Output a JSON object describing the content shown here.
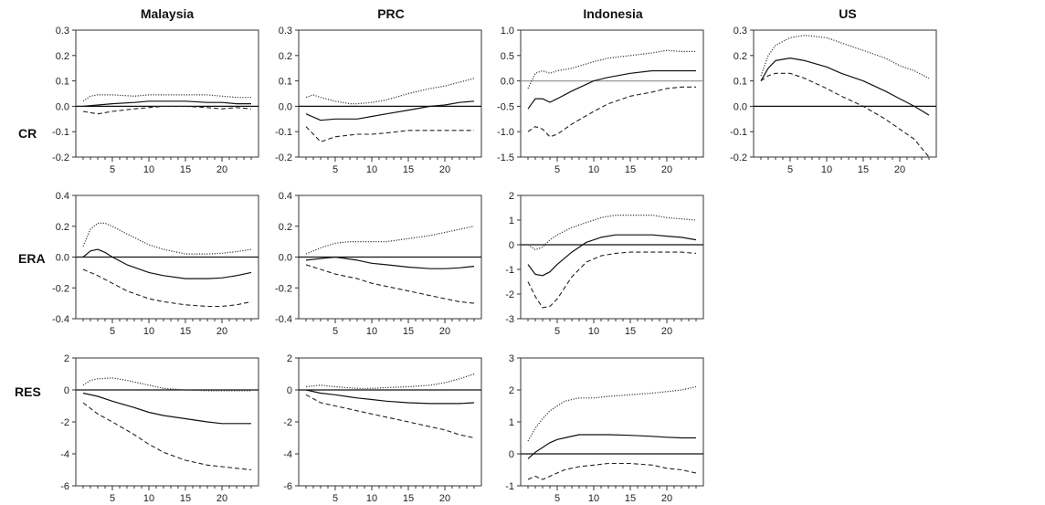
{
  "columns": [
    "Malaysia",
    "PRC",
    "Indonesia",
    "US"
  ],
  "rows": [
    "CR",
    "ERA",
    "RES"
  ],
  "chart_data": [
    {
      "type": "line",
      "country": "Malaysia",
      "variable": "CR",
      "ylim": [
        -0.2,
        0.3
      ],
      "yticks": [
        "0.3",
        "0.2",
        "0.1",
        "0.0",
        "-0.1",
        "-0.2"
      ],
      "xticks": [
        "5",
        "10",
        "15",
        "20"
      ],
      "xlim": [
        0,
        25
      ],
      "series": [
        {
          "style": "solid",
          "x": [
            1,
            3,
            5,
            8,
            10,
            12,
            15,
            18,
            20,
            22,
            24
          ],
          "values": [
            0.0,
            0.005,
            0.01,
            0.015,
            0.02,
            0.02,
            0.02,
            0.015,
            0.015,
            0.01,
            0.01
          ]
        },
        {
          "style": "dotted",
          "x": [
            1,
            2,
            3,
            5,
            8,
            10,
            12,
            15,
            18,
            20,
            22,
            24
          ],
          "values": [
            0.02,
            0.04,
            0.045,
            0.045,
            0.04,
            0.045,
            0.045,
            0.045,
            0.045,
            0.04,
            0.035,
            0.035
          ]
        },
        {
          "style": "dashed",
          "x": [
            1,
            3,
            5,
            8,
            10,
            12,
            15,
            18,
            20,
            22,
            24
          ],
          "values": [
            -0.02,
            -0.03,
            -0.02,
            -0.01,
            -0.005,
            0.0,
            0.0,
            -0.005,
            -0.01,
            -0.005,
            -0.01
          ]
        }
      ]
    },
    {
      "type": "line",
      "country": "PRC",
      "variable": "CR",
      "ylim": [
        -0.2,
        0.3
      ],
      "yticks": [
        "0.3",
        "0.2",
        "0.1",
        "0.0",
        "-0.1",
        "-0.2"
      ],
      "xticks": [
        "5",
        "10",
        "15",
        "20"
      ],
      "xlim": [
        0,
        25
      ],
      "series": [
        {
          "style": "solid",
          "x": [
            1,
            3,
            5,
            8,
            10,
            12,
            15,
            18,
            20,
            22,
            24
          ],
          "values": [
            -0.03,
            -0.055,
            -0.05,
            -0.05,
            -0.04,
            -0.03,
            -0.015,
            0.0,
            0.005,
            0.015,
            0.02
          ]
        },
        {
          "style": "dotted",
          "x": [
            1,
            2,
            3,
            5,
            7,
            8,
            10,
            12,
            15,
            18,
            20,
            22,
            24
          ],
          "values": [
            0.035,
            0.045,
            0.035,
            0.02,
            0.01,
            0.01,
            0.015,
            0.025,
            0.05,
            0.07,
            0.08,
            0.095,
            0.11
          ]
        },
        {
          "style": "dashed",
          "x": [
            1,
            3,
            5,
            8,
            10,
            12,
            15,
            18,
            20,
            22,
            24
          ],
          "values": [
            -0.08,
            -0.14,
            -0.12,
            -0.11,
            -0.11,
            -0.105,
            -0.095,
            -0.095,
            -0.095,
            -0.095,
            -0.095
          ]
        }
      ]
    },
    {
      "type": "line",
      "country": "Indonesia",
      "variable": "CR",
      "ylim": [
        -1.5,
        1.0
      ],
      "yticks": [
        "1.0",
        "0.5",
        "0.0",
        "-0.5",
        "-1.0",
        "-1.5"
      ],
      "xticks": [
        "5",
        "10",
        "15",
        "20"
      ],
      "xlim": [
        0,
        25
      ],
      "series": [
        {
          "style": "solid",
          "x": [
            1,
            2,
            3,
            4,
            5,
            7,
            10,
            12,
            15,
            18,
            20,
            22,
            24
          ],
          "values": [
            -0.55,
            -0.35,
            -0.35,
            -0.42,
            -0.35,
            -0.2,
            0.0,
            0.07,
            0.15,
            0.2,
            0.2,
            0.2,
            0.2
          ]
        },
        {
          "style": "dotted",
          "x": [
            1,
            2,
            3,
            4,
            5,
            7,
            10,
            12,
            15,
            18,
            20,
            22,
            24
          ],
          "values": [
            -0.15,
            0.15,
            0.2,
            0.15,
            0.2,
            0.25,
            0.38,
            0.45,
            0.5,
            0.55,
            0.6,
            0.58,
            0.58
          ]
        },
        {
          "style": "dashed",
          "x": [
            1,
            2,
            3,
            4,
            5,
            7,
            10,
            12,
            15,
            18,
            20,
            22,
            24
          ],
          "values": [
            -1.0,
            -0.9,
            -0.95,
            -1.1,
            -1.05,
            -0.85,
            -0.6,
            -0.45,
            -0.3,
            -0.22,
            -0.15,
            -0.12,
            -0.12
          ]
        }
      ]
    },
    {
      "type": "line",
      "country": "US",
      "variable": "CR",
      "ylim": [
        -0.2,
        0.3
      ],
      "yticks": [
        "0.3",
        "0.2",
        "0.1",
        "0.0",
        "-0.1",
        "-0.2"
      ],
      "xticks": [
        "5",
        "10",
        "15",
        "20"
      ],
      "xlim": [
        0,
        25
      ],
      "series": [
        {
          "style": "solid",
          "x": [
            1,
            2,
            3,
            5,
            7,
            10,
            12,
            15,
            18,
            20,
            22,
            24
          ],
          "values": [
            0.1,
            0.15,
            0.18,
            0.19,
            0.18,
            0.155,
            0.13,
            0.1,
            0.06,
            0.03,
            0.0,
            -0.035
          ]
        },
        {
          "style": "dotted",
          "x": [
            1,
            2,
            3,
            5,
            7,
            10,
            12,
            15,
            18,
            20,
            22,
            24
          ],
          "values": [
            0.12,
            0.2,
            0.24,
            0.27,
            0.28,
            0.27,
            0.25,
            0.22,
            0.19,
            0.16,
            0.14,
            0.11
          ]
        },
        {
          "style": "dashed",
          "x": [
            1,
            2,
            3,
            5,
            7,
            10,
            12,
            15,
            18,
            20,
            22,
            24
          ],
          "values": [
            0.1,
            0.12,
            0.13,
            0.13,
            0.11,
            0.07,
            0.04,
            0.0,
            -0.05,
            -0.09,
            -0.13,
            -0.2
          ]
        }
      ]
    },
    {
      "type": "line",
      "country": "Malaysia",
      "variable": "ERA",
      "ylim": [
        -0.4,
        0.4
      ],
      "yticks": [
        "0.4",
        "0.2",
        "0.0",
        "-0.2",
        "-0.4"
      ],
      "xticks": [
        "5",
        "10",
        "15",
        "20"
      ],
      "xlim": [
        0,
        25
      ],
      "series": [
        {
          "style": "solid",
          "x": [
            1,
            2,
            3,
            4,
            5,
            7,
            10,
            12,
            15,
            18,
            20,
            22,
            24
          ],
          "values": [
            0.0,
            0.04,
            0.05,
            0.03,
            0.0,
            -0.05,
            -0.1,
            -0.12,
            -0.14,
            -0.14,
            -0.135,
            -0.12,
            -0.1
          ]
        },
        {
          "style": "dotted",
          "x": [
            1,
            2,
            3,
            4,
            5,
            7,
            10,
            12,
            15,
            18,
            20,
            22,
            24
          ],
          "values": [
            0.07,
            0.18,
            0.22,
            0.22,
            0.2,
            0.15,
            0.08,
            0.05,
            0.02,
            0.02,
            0.025,
            0.035,
            0.05
          ]
        },
        {
          "style": "dashed",
          "x": [
            1,
            2,
            3,
            5,
            7,
            10,
            12,
            15,
            18,
            20,
            22,
            24
          ],
          "values": [
            -0.08,
            -0.1,
            -0.12,
            -0.17,
            -0.22,
            -0.27,
            -0.29,
            -0.31,
            -0.32,
            -0.32,
            -0.31,
            -0.29
          ]
        }
      ]
    },
    {
      "type": "line",
      "country": "PRC",
      "variable": "ERA",
      "ylim": [
        -0.4,
        0.4
      ],
      "yticks": [
        "0.4",
        "0.2",
        "0.0",
        "-0.2",
        "-0.4"
      ],
      "xticks": [
        "5",
        "10",
        "15",
        "20"
      ],
      "xlim": [
        0,
        25
      ],
      "series": [
        {
          "style": "solid",
          "x": [
            1,
            3,
            5,
            8,
            10,
            12,
            15,
            18,
            20,
            22,
            24
          ],
          "values": [
            -0.02,
            -0.01,
            0.0,
            -0.02,
            -0.04,
            -0.05,
            -0.065,
            -0.075,
            -0.075,
            -0.07,
            -0.06
          ]
        },
        {
          "style": "dotted",
          "x": [
            1,
            3,
            5,
            7,
            10,
            12,
            15,
            18,
            20,
            22,
            24
          ],
          "values": [
            0.02,
            0.06,
            0.09,
            0.1,
            0.1,
            0.1,
            0.12,
            0.14,
            0.16,
            0.18,
            0.2
          ]
        },
        {
          "style": "dashed",
          "x": [
            1,
            3,
            5,
            8,
            10,
            12,
            15,
            18,
            20,
            22,
            24
          ],
          "values": [
            -0.05,
            -0.08,
            -0.11,
            -0.14,
            -0.17,
            -0.19,
            -0.22,
            -0.25,
            -0.27,
            -0.29,
            -0.3
          ]
        }
      ]
    },
    {
      "type": "line",
      "country": "Indonesia",
      "variable": "ERA",
      "ylim": [
        -3,
        2
      ],
      "yticks": [
        "2",
        "1",
        "0",
        "-1",
        "-2",
        "-3"
      ],
      "xticks": [
        "5",
        "10",
        "15",
        "20"
      ],
      "xlim": [
        0,
        25
      ],
      "series": [
        {
          "style": "solid",
          "x": [
            1,
            2,
            3,
            4,
            5,
            7,
            9,
            11,
            13,
            15,
            18,
            20,
            22,
            24
          ],
          "values": [
            -0.8,
            -1.2,
            -1.25,
            -1.1,
            -0.8,
            -0.3,
            0.1,
            0.3,
            0.4,
            0.4,
            0.4,
            0.35,
            0.3,
            0.2
          ]
        },
        {
          "style": "dotted",
          "x": [
            1,
            2,
            3,
            4,
            5,
            7,
            9,
            11,
            13,
            15,
            18,
            20,
            22,
            24
          ],
          "values": [
            0.0,
            -0.2,
            -0.1,
            0.2,
            0.4,
            0.7,
            0.9,
            1.1,
            1.2,
            1.2,
            1.2,
            1.1,
            1.05,
            1.0
          ]
        },
        {
          "style": "dashed",
          "x": [
            1,
            2,
            3,
            4,
            5,
            7,
            9,
            11,
            13,
            15,
            18,
            20,
            22,
            24
          ],
          "values": [
            -1.5,
            -2.1,
            -2.55,
            -2.5,
            -2.2,
            -1.3,
            -0.7,
            -0.45,
            -0.35,
            -0.3,
            -0.3,
            -0.3,
            -0.3,
            -0.35
          ]
        }
      ]
    },
    {
      "type": "line",
      "country": "Malaysia",
      "variable": "RES",
      "ylim": [
        -6,
        2
      ],
      "yticks": [
        "2",
        "0",
        "-2",
        "-4",
        "-6"
      ],
      "xticks": [
        "5",
        "10",
        "15",
        "20"
      ],
      "xlim": [
        0,
        25
      ],
      "series": [
        {
          "style": "solid",
          "x": [
            1,
            3,
            5,
            8,
            10,
            12,
            15,
            18,
            20,
            22,
            24
          ],
          "values": [
            -0.2,
            -0.4,
            -0.7,
            -1.1,
            -1.4,
            -1.6,
            -1.8,
            -2.0,
            -2.1,
            -2.1,
            -2.1
          ]
        },
        {
          "style": "dotted",
          "x": [
            1,
            2,
            3,
            5,
            7,
            10,
            12,
            15,
            18,
            20,
            22,
            24
          ],
          "values": [
            0.3,
            0.6,
            0.7,
            0.75,
            0.6,
            0.3,
            0.1,
            0.0,
            -0.05,
            -0.05,
            -0.05,
            -0.05
          ]
        },
        {
          "style": "dashed",
          "x": [
            1,
            3,
            5,
            8,
            10,
            12,
            15,
            18,
            20,
            22,
            24
          ],
          "values": [
            -0.8,
            -1.5,
            -2.0,
            -2.8,
            -3.4,
            -3.9,
            -4.4,
            -4.7,
            -4.8,
            -4.9,
            -5.0
          ]
        }
      ]
    },
    {
      "type": "line",
      "country": "PRC",
      "variable": "RES",
      "ylim": [
        -6,
        2
      ],
      "yticks": [
        "2",
        "0",
        "-2",
        "-4",
        "-6"
      ],
      "xticks": [
        "5",
        "10",
        "15",
        "20"
      ],
      "xlim": [
        0,
        25
      ],
      "series": [
        {
          "style": "solid",
          "x": [
            1,
            3,
            5,
            8,
            10,
            12,
            15,
            18,
            20,
            22,
            24
          ],
          "values": [
            0.0,
            -0.2,
            -0.3,
            -0.5,
            -0.6,
            -0.7,
            -0.8,
            -0.85,
            -0.85,
            -0.85,
            -0.8
          ]
        },
        {
          "style": "dotted",
          "x": [
            1,
            3,
            5,
            8,
            10,
            12,
            15,
            18,
            20,
            22,
            24
          ],
          "values": [
            0.2,
            0.3,
            0.2,
            0.1,
            0.1,
            0.15,
            0.2,
            0.3,
            0.45,
            0.7,
            1.0
          ]
        },
        {
          "style": "dashed",
          "x": [
            1,
            3,
            5,
            8,
            10,
            12,
            15,
            18,
            20,
            22,
            24
          ],
          "values": [
            -0.3,
            -0.8,
            -1.0,
            -1.3,
            -1.5,
            -1.7,
            -2.0,
            -2.3,
            -2.5,
            -2.8,
            -3.0
          ]
        }
      ]
    },
    {
      "type": "line",
      "country": "Indonesia",
      "variable": "RES",
      "ylim": [
        -1,
        3
      ],
      "yticks": [
        "3",
        "2",
        "1",
        "0",
        "-1"
      ],
      "xticks": [
        "5",
        "10",
        "15",
        "20"
      ],
      "xlim": [
        0,
        25
      ],
      "series": [
        {
          "style": "solid",
          "x": [
            1,
            2,
            3,
            4,
            5,
            6,
            8,
            10,
            12,
            15,
            18,
            20,
            22,
            24
          ],
          "values": [
            -0.15,
            0.05,
            0.2,
            0.35,
            0.45,
            0.5,
            0.6,
            0.6,
            0.6,
            0.58,
            0.55,
            0.52,
            0.5,
            0.5
          ]
        },
        {
          "style": "dotted",
          "x": [
            1,
            2,
            3,
            4,
            5,
            6,
            8,
            10,
            12,
            15,
            18,
            20,
            22,
            24
          ],
          "values": [
            0.4,
            0.8,
            1.1,
            1.35,
            1.5,
            1.65,
            1.75,
            1.75,
            1.8,
            1.85,
            1.9,
            1.95,
            2.0,
            2.1
          ]
        },
        {
          "style": "dashed",
          "x": [
            1,
            2,
            3,
            4,
            5,
            6,
            8,
            10,
            12,
            15,
            18,
            20,
            22,
            24
          ],
          "values": [
            -0.8,
            -0.7,
            -0.8,
            -0.7,
            -0.6,
            -0.5,
            -0.4,
            -0.35,
            -0.3,
            -0.3,
            -0.35,
            -0.45,
            -0.5,
            -0.6
          ]
        }
      ]
    }
  ]
}
